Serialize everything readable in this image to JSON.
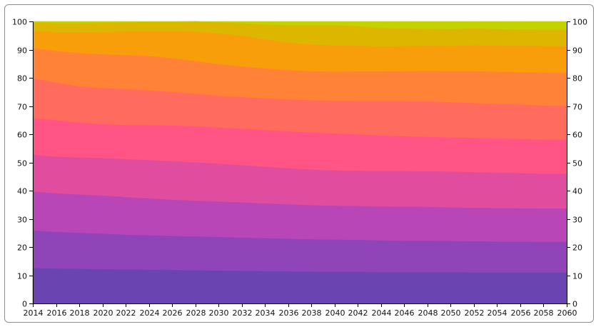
{
  "chart_data": {
    "type": "area",
    "stacked": true,
    "title": "",
    "xlabel": "",
    "ylabel": "",
    "x": [
      2014,
      2016,
      2018,
      2020,
      2022,
      2024,
      2026,
      2028,
      2030,
      2032,
      2034,
      2036,
      2038,
      2040,
      2042,
      2044,
      2046,
      2048,
      2050,
      2052,
      2054,
      2056,
      2058,
      2060
    ],
    "xlim": [
      2014,
      2060
    ],
    "ylim": [
      0,
      100
    ],
    "y_ticks": [
      0,
      10,
      20,
      30,
      40,
      50,
      60,
      70,
      80,
      90,
      100
    ],
    "x_ticks": [
      2014,
      2016,
      2018,
      2020,
      2022,
      2024,
      2026,
      2028,
      2030,
      2032,
      2034,
      2036,
      2038,
      2040,
      2042,
      2044,
      2046,
      2048,
      2050,
      2052,
      2054,
      2056,
      2058,
      2060
    ],
    "grid": false,
    "legend": "none",
    "colors": [
      "#6a44b0",
      "#8f44b8",
      "#b946b6",
      "#e04d9f",
      "#ff5484",
      "#ff6b5d",
      "#ff8236",
      "#f79e0a",
      "#ddb600",
      "#c4d300"
    ],
    "series": [
      {
        "values": [
          12.6,
          12.4,
          12.3,
          12.2,
          12.1,
          12.0,
          11.9,
          11.8,
          11.7,
          11.6,
          11.5,
          11.4,
          11.3,
          11.2,
          11.2,
          11.1,
          11.1,
          11.1,
          11.1,
          11.0,
          11.0,
          11.0,
          11.0,
          11.0
        ]
      },
      {
        "values": [
          13.3,
          13.0,
          12.8,
          12.6,
          12.3,
          12.2,
          12.1,
          12.0,
          11.9,
          11.8,
          11.7,
          11.6,
          11.5,
          11.5,
          11.4,
          11.3,
          11.2,
          11.2,
          11.1,
          11.1,
          11.0,
          11.0,
          10.9,
          10.9
        ]
      },
      {
        "values": [
          13.8,
          13.7,
          13.6,
          13.5,
          13.4,
          13.1,
          12.8,
          12.7,
          12.6,
          12.5,
          12.3,
          12.2,
          12.1,
          12.0,
          12.0,
          12.1,
          12.1,
          12.0,
          11.9,
          11.9,
          11.9,
          11.8,
          11.8,
          11.8
        ]
      },
      {
        "values": [
          13.1,
          13.0,
          13.1,
          13.3,
          13.4,
          13.6,
          13.7,
          13.6,
          13.4,
          13.2,
          13.0,
          12.8,
          12.6,
          12.5,
          12.5,
          12.5,
          12.6,
          12.6,
          12.7,
          12.6,
          12.5,
          12.5,
          12.4,
          12.4
        ]
      },
      {
        "values": [
          12.9,
          12.9,
          12.3,
          12.0,
          12.1,
          12.4,
          12.6,
          12.8,
          12.8,
          12.9,
          13.0,
          13.0,
          13.1,
          13.1,
          12.9,
          12.6,
          12.3,
          12.2,
          12.1,
          12.1,
          12.1,
          12.1,
          12.0,
          12.0
        ]
      },
      {
        "values": [
          14.2,
          13.4,
          12.9,
          12.8,
          12.8,
          12.3,
          11.9,
          11.5,
          11.3,
          11.2,
          11.3,
          11.4,
          11.5,
          11.6,
          11.8,
          12.2,
          12.5,
          12.6,
          12.5,
          12.4,
          12.3,
          12.2,
          12.1,
          12.0
        ]
      },
      {
        "values": [
          10.7,
          11.2,
          11.8,
          12.0,
          12.0,
          12.2,
          12.0,
          11.6,
          11.2,
          10.9,
          10.6,
          10.4,
          10.3,
          10.3,
          10.5,
          10.5,
          10.6,
          10.8,
          11.0,
          11.3,
          11.4,
          11.5,
          11.7,
          11.7
        ]
      },
      {
        "values": [
          6.0,
          6.7,
          7.5,
          7.8,
          8.4,
          8.8,
          9.6,
          10.4,
          10.9,
          10.9,
          10.3,
          9.7,
          9.5,
          9.3,
          9.1,
          8.9,
          8.9,
          8.9,
          8.9,
          9.2,
          9.2,
          9.3,
          9.4,
          9.5
        ]
      },
      {
        "values": [
          3.1,
          3.1,
          3.1,
          3.3,
          3.2,
          3.3,
          3.3,
          3.6,
          3.9,
          4.4,
          5.3,
          6.2,
          6.8,
          7.2,
          7.0,
          6.5,
          6.2,
          6.0,
          6.0,
          6.0,
          5.9,
          5.8,
          5.8,
          5.8
        ]
      },
      {
        "values": [
          0.3,
          0.6,
          0.6,
          0.5,
          0.3,
          0.1,
          0.1,
          0.0,
          0.3,
          0.6,
          1.0,
          1.3,
          1.3,
          1.3,
          1.6,
          2.3,
          2.5,
          2.6,
          2.7,
          2.4,
          2.7,
          2.8,
          2.9,
          2.9
        ]
      }
    ]
  }
}
